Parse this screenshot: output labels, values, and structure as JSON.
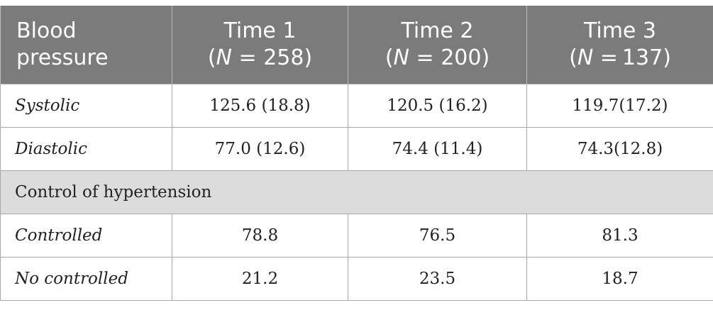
{
  "table": {
    "header": {
      "col0": [
        "Blood",
        "pressure"
      ],
      "col1": {
        "title": "Time 1",
        "n_prefix": "(",
        "n_var": "N",
        "n_rest": " = 258)"
      },
      "col2": {
        "title": "Time 2",
        "n_prefix": "(",
        "n_var": "N",
        "n_rest": " = 200)"
      },
      "col3": {
        "title": "Time 3",
        "n_prefix": "(",
        "n_var": "N",
        "n_rest": " = 137)"
      }
    },
    "rows": [
      {
        "label": "Systolic",
        "values": [
          "125.6 (18.8)",
          "120.5 (16.2)",
          "119.7(17.2)"
        ]
      },
      {
        "label": "Diastolic",
        "values": [
          "77.0 (12.6)",
          "74.4 (11.4)",
          "74.3(12.8)"
        ]
      }
    ],
    "section": "Control of hypertension",
    "rows2": [
      {
        "label": "Controlled",
        "values": [
          "78.8",
          "76.5",
          "81.3"
        ]
      },
      {
        "label": "No controlled",
        "values": [
          "21.2",
          "23.5",
          "18.7"
        ]
      }
    ]
  }
}
